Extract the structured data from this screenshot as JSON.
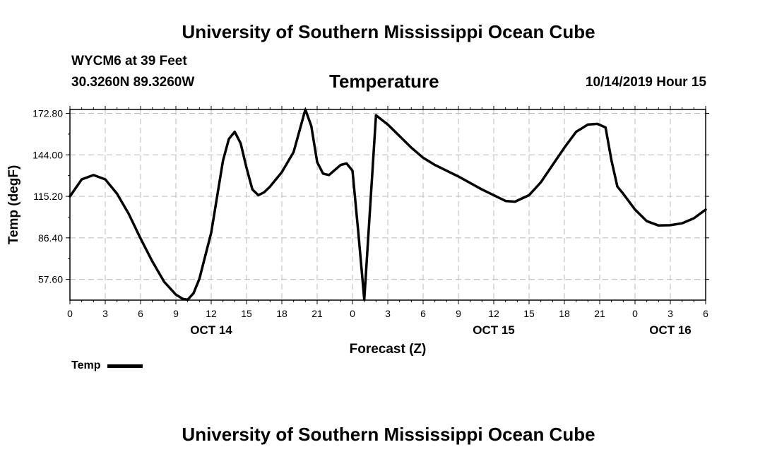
{
  "header": {
    "title": "University of Southern Mississippi Ocean Cube",
    "station": "WYCM6 at 39 Feet",
    "coords": "30.3260N 89.3260W",
    "chart_title": "Temperature",
    "stamp": "10/14/2019 Hour 15"
  },
  "footer": {
    "title": "University of Southern Mississippi Ocean Cube"
  },
  "legend": {
    "label": "Temp"
  },
  "colors": {
    "line": "#000000",
    "grid": "#bbbbbb",
    "background": "#ffffff"
  },
  "chart_data": {
    "type": "line",
    "title": "Temperature",
    "xlabel": "Forecast (Z)",
    "ylabel": "Temp (degF)",
    "x_unit": "hours since OCT 14 00Z",
    "xlim": [
      0,
      54
    ],
    "ylim": [
      43.2,
      175.5
    ],
    "grid": true,
    "legend_position": "bottom-left",
    "x_ticks": [
      {
        "x": 0,
        "label": "0"
      },
      {
        "x": 3,
        "label": "3"
      },
      {
        "x": 6,
        "label": "6"
      },
      {
        "x": 9,
        "label": "9"
      },
      {
        "x": 12,
        "label": "12"
      },
      {
        "x": 15,
        "label": "15"
      },
      {
        "x": 18,
        "label": "18"
      },
      {
        "x": 21,
        "label": "21"
      },
      {
        "x": 24,
        "label": "0"
      },
      {
        "x": 27,
        "label": "3"
      },
      {
        "x": 30,
        "label": "6"
      },
      {
        "x": 33,
        "label": "9"
      },
      {
        "x": 36,
        "label": "12"
      },
      {
        "x": 39,
        "label": "15"
      },
      {
        "x": 42,
        "label": "18"
      },
      {
        "x": 45,
        "label": "21"
      },
      {
        "x": 48,
        "label": "0"
      },
      {
        "x": 51,
        "label": "3"
      },
      {
        "x": 54,
        "label": "6"
      }
    ],
    "date_labels": [
      {
        "x": 12,
        "label": "OCT 14"
      },
      {
        "x": 36,
        "label": "OCT 15"
      },
      {
        "x": 51,
        "label": "OCT 16"
      }
    ],
    "y_ticks": [
      {
        "y": 57.6,
        "label": "57.60"
      },
      {
        "y": 86.4,
        "label": "86.40"
      },
      {
        "y": 115.2,
        "label": "115.20"
      },
      {
        "y": 144.0,
        "label": "144.00"
      },
      {
        "y": 172.8,
        "label": "172.80"
      }
    ],
    "series": [
      {
        "name": "Temp",
        "points": [
          [
            0,
            115.2
          ],
          [
            1,
            127
          ],
          [
            2,
            130
          ],
          [
            3,
            127
          ],
          [
            4,
            117
          ],
          [
            5,
            103
          ],
          [
            6,
            86
          ],
          [
            7,
            70
          ],
          [
            8,
            56
          ],
          [
            9,
            47
          ],
          [
            9.6,
            44
          ],
          [
            10,
            43.5
          ],
          [
            10.5,
            48
          ],
          [
            11,
            58
          ],
          [
            12,
            90
          ],
          [
            13,
            140
          ],
          [
            13.5,
            155
          ],
          [
            14,
            160
          ],
          [
            14.5,
            152
          ],
          [
            15,
            135
          ],
          [
            15.5,
            120
          ],
          [
            16,
            116
          ],
          [
            16.5,
            118
          ],
          [
            17,
            122
          ],
          [
            18,
            132
          ],
          [
            19,
            146
          ],
          [
            20,
            175.5
          ],
          [
            20.5,
            164
          ],
          [
            21,
            139
          ],
          [
            21.5,
            131
          ],
          [
            22,
            130
          ],
          [
            23,
            137
          ],
          [
            23.5,
            138
          ],
          [
            24,
            133
          ],
          [
            24.5,
            90
          ],
          [
            25,
            43.5
          ],
          [
            26,
            171.5
          ],
          [
            27,
            165
          ],
          [
            28,
            157
          ],
          [
            29,
            149
          ],
          [
            30,
            142
          ],
          [
            31,
            137
          ],
          [
            33,
            129
          ],
          [
            35,
            120
          ],
          [
            37,
            112
          ],
          [
            37.8,
            111.5
          ],
          [
            39,
            116
          ],
          [
            40,
            125
          ],
          [
            41,
            137
          ],
          [
            42,
            149
          ],
          [
            43,
            160
          ],
          [
            44,
            165
          ],
          [
            44.8,
            165.5
          ],
          [
            45.5,
            163
          ],
          [
            46,
            140
          ],
          [
            46.5,
            122
          ],
          [
            47,
            117
          ],
          [
            48,
            106
          ],
          [
            49,
            98
          ],
          [
            50,
            95
          ],
          [
            51,
            95.2
          ],
          [
            52,
            96.5
          ],
          [
            53,
            100
          ],
          [
            54,
            106
          ]
        ]
      }
    ]
  }
}
